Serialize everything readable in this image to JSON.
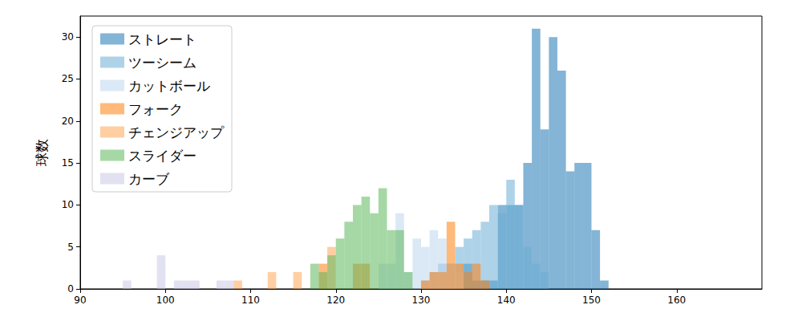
{
  "chart_data": {
    "type": "histogram",
    "y_label": "球数",
    "bins": [
      94,
      95,
      96,
      97,
      98,
      99,
      100,
      101,
      102,
      103,
      104,
      105,
      106,
      107,
      108,
      109,
      110,
      111,
      112,
      113,
      114,
      115,
      116,
      117,
      118,
      119,
      120,
      121,
      122,
      123,
      124,
      125,
      126,
      127,
      128,
      129,
      130,
      131,
      132,
      133,
      134,
      135,
      136,
      137,
      138,
      139,
      140,
      141,
      142,
      143,
      144,
      145,
      146,
      147,
      148,
      149,
      150,
      151,
      152,
      153
    ],
    "series": [
      {
        "name": "ストレート",
        "color": "#1f77b4",
        "values": [
          0,
          0,
          0,
          0,
          0,
          0,
          0,
          0,
          0,
          0,
          0,
          0,
          0,
          0,
          0,
          0,
          0,
          0,
          0,
          0,
          0,
          0,
          0,
          0,
          0,
          0,
          0,
          0,
          0,
          0,
          0,
          0,
          0,
          0,
          0,
          0,
          0,
          0,
          0,
          0,
          0,
          3,
          1,
          1,
          1,
          10,
          10,
          10,
          15,
          31,
          19,
          30,
          26,
          14,
          15,
          15,
          7,
          1,
          0
        ]
      },
      {
        "name": "ツーシーム",
        "color": "#6baed6",
        "values": [
          0,
          0,
          0,
          0,
          0,
          0,
          0,
          0,
          0,
          0,
          0,
          0,
          0,
          0,
          0,
          0,
          0,
          0,
          0,
          0,
          0,
          0,
          0,
          0,
          0,
          0,
          0,
          0,
          0,
          0,
          0,
          0,
          0,
          0,
          0,
          0,
          1,
          2,
          3,
          3,
          5,
          6,
          7,
          8,
          10,
          9,
          13,
          10,
          5,
          3,
          2,
          0,
          0,
          0,
          0,
          0,
          0,
          0,
          0
        ]
      },
      {
        "name": "カットボール",
        "color": "#bdd7ee",
        "values": [
          0,
          0,
          0,
          0,
          0,
          0,
          0,
          0,
          0,
          0,
          0,
          0,
          0,
          0,
          0,
          0,
          0,
          0,
          0,
          0,
          0,
          0,
          0,
          0,
          0,
          0,
          0,
          0,
          0,
          0,
          0,
          3,
          3,
          9,
          2,
          6,
          5,
          7,
          6,
          3,
          2,
          0,
          0,
          0,
          0,
          0,
          0,
          0,
          0,
          0,
          0,
          0,
          0,
          0,
          0,
          0,
          0,
          0,
          0
        ]
      },
      {
        "name": "フォーク",
        "color": "#ff7f0e",
        "values": [
          0,
          0,
          0,
          0,
          0,
          0,
          0,
          0,
          0,
          0,
          0,
          0,
          0,
          0,
          0,
          0,
          0,
          0,
          0,
          0,
          0,
          0,
          0,
          0,
          3,
          0,
          0,
          0,
          3,
          3,
          0,
          0,
          0,
          0,
          0,
          0,
          1,
          2,
          2,
          8,
          3,
          2,
          3,
          1,
          0,
          0,
          0,
          0,
          0,
          0,
          0,
          0,
          0,
          0,
          0,
          0,
          0,
          0,
          0
        ]
      },
      {
        "name": "チェンジアップ",
        "color": "#ffa557",
        "values": [
          0,
          0,
          0,
          0,
          0,
          0,
          0,
          0,
          0,
          0,
          0,
          0,
          0,
          0,
          1,
          0,
          0,
          0,
          2,
          0,
          0,
          2,
          0,
          0,
          0,
          5,
          0,
          0,
          0,
          0,
          0,
          0,
          0,
          0,
          0,
          0,
          0,
          0,
          0,
          0,
          0,
          0,
          0,
          0,
          0,
          0,
          0,
          0,
          0,
          0,
          0,
          0,
          0,
          0,
          0,
          0,
          0,
          0,
          0
        ]
      },
      {
        "name": "スライダー",
        "color": "#5cb85c",
        "values": [
          0,
          0,
          0,
          0,
          0,
          0,
          0,
          0,
          0,
          0,
          0,
          0,
          0,
          0,
          0,
          0,
          0,
          0,
          0,
          0,
          0,
          0,
          0,
          3,
          2,
          4,
          6,
          8,
          10,
          11,
          9,
          12,
          7,
          7,
          2,
          0,
          0,
          0,
          0,
          0,
          0,
          0,
          0,
          0,
          0,
          0,
          0,
          0,
          0,
          0,
          0,
          0,
          0,
          0,
          0,
          0,
          0,
          0,
          0
        ]
      },
      {
        "name": "カーブ",
        "color": "#c8c8e6",
        "values": [
          0,
          1,
          0,
          0,
          0,
          4,
          0,
          1,
          1,
          1,
          0,
          0,
          1,
          1,
          0,
          0,
          0,
          0,
          0,
          0,
          0,
          0,
          0,
          0,
          0,
          0,
          0,
          0,
          0,
          0,
          0,
          0,
          0,
          0,
          0,
          0,
          0,
          0,
          0,
          0,
          0,
          0,
          0,
          0,
          0,
          0,
          0,
          0,
          0,
          0,
          0,
          0,
          0,
          0,
          0,
          0,
          0,
          0,
          0
        ]
      }
    ],
    "xlim": [
      90,
      170
    ],
    "xticks": [
      90,
      100,
      110,
      120,
      130,
      140,
      150,
      160
    ],
    "ylim": [
      0,
      32.5
    ],
    "yticks": [
      0,
      5,
      10,
      15,
      20,
      25,
      30
    ],
    "legend": "upper left",
    "grid": false
  }
}
